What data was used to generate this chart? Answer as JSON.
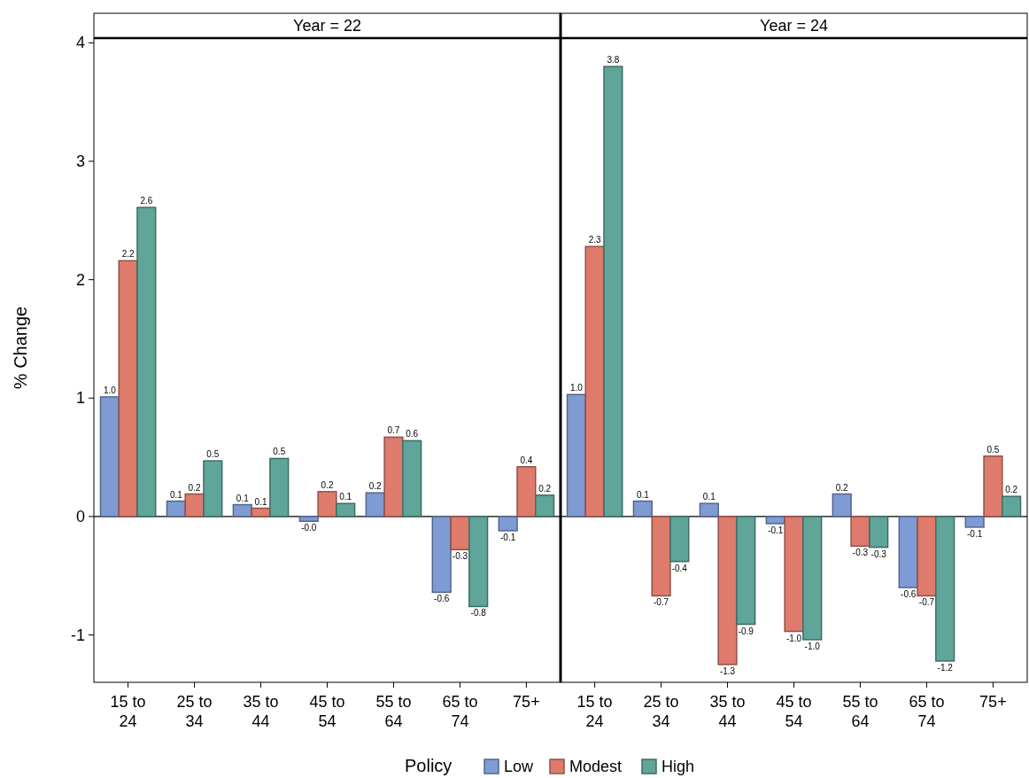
{
  "chart_data": [
    {
      "type": "bar",
      "title": "Year = 22",
      "ylabel": "% Change",
      "legend_title": "Policy",
      "legend": "bottom",
      "categories": [
        "15 to 24",
        "25 to 34",
        "35 to 44",
        "45 to 54",
        "55 to 64",
        "65 to 74",
        "75+"
      ],
      "ylim": [
        -1.4,
        4.04
      ],
      "yticks": [
        -1,
        0,
        1,
        2,
        3,
        4
      ],
      "series": [
        {
          "name": "Low",
          "color": "#7f9bd3",
          "values": [
            1.01,
            0.13,
            0.1,
            -0.04,
            0.2,
            -0.64,
            -0.12
          ],
          "value_labels": [
            "1.0",
            "0.1",
            "0.1",
            "-0.0",
            "0.2",
            "-0.6",
            "-0.1"
          ]
        },
        {
          "name": "Modest",
          "color": "#de7b6d",
          "values": [
            2.16,
            0.19,
            0.07,
            0.21,
            0.67,
            -0.28,
            0.42
          ],
          "value_labels": [
            "2.2",
            "0.2",
            "0.1",
            "0.2",
            "0.7",
            "-0.3",
            "0.4"
          ]
        },
        {
          "name": "High",
          "color": "#5fa59a",
          "values": [
            2.61,
            0.47,
            0.49,
            0.11,
            0.64,
            -0.76,
            0.18
          ],
          "value_labels": [
            "2.6",
            "0.5",
            "0.5",
            "0.1",
            "0.6",
            "-0.8",
            "0.2"
          ]
        }
      ]
    },
    {
      "type": "bar",
      "title": "Year = 24",
      "categories": [
        "15 to 24",
        "25 to 34",
        "35 to 44",
        "45 to 54",
        "55 to 64",
        "65 to 74",
        "75+"
      ],
      "ylim": [
        -1.4,
        4.04
      ],
      "tick_labels": "x",
      "series": [
        {
          "color": "#7f9bd3",
          "values": [
            1.03,
            0.13,
            0.11,
            -0.06,
            0.19,
            -0.6,
            -0.09
          ],
          "value_labels": [
            "1.0",
            "0.1",
            "0.1",
            "-0.1",
            "0.2",
            "-0.6",
            "-0.1"
          ]
        },
        {
          "color": "#de7b6d",
          "values": [
            2.28,
            -0.67,
            -1.25,
            -0.97,
            -0.25,
            -0.67,
            0.51
          ],
          "value_labels": [
            "2.3",
            "-0.7",
            "-1.3",
            "-1.0",
            "-0.3",
            "-0.7",
            "0.5"
          ]
        },
        {
          "color": "#5fa59a",
          "values": [
            3.8,
            -0.38,
            -0.91,
            -1.04,
            -0.26,
            -1.22,
            0.17
          ],
          "value_labels": [
            "3.8",
            "-0.4",
            "-0.9",
            "-1.0",
            "-0.3",
            "-1.2",
            "0.2"
          ]
        }
      ]
    }
  ]
}
